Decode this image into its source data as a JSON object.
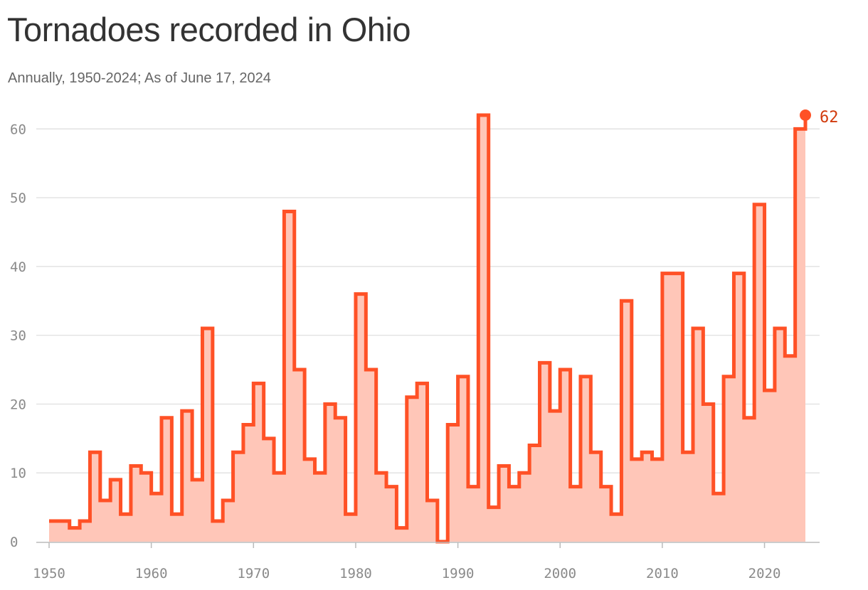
{
  "header": {
    "title": "Tornadoes recorded in Ohio",
    "subtitle": "Annually, 1950-2024; As of June 17, 2024"
  },
  "colors": {
    "line": "#ff5126",
    "area": "#ffc6b8",
    "grid": "#dddddd",
    "axis": "#bbbbbb",
    "tick_text": "#8a8a8a",
    "end_label": "#d13a0c"
  },
  "chart_data": {
    "type": "area",
    "step": true,
    "title": "Tornadoes recorded in Ohio",
    "subtitle": "Annually, 1950-2024; As of June 17, 2024",
    "xlabel": "",
    "ylabel": "",
    "xlim": [
      1950,
      2024
    ],
    "ylim": [
      0,
      62
    ],
    "x_ticks": [
      1950,
      1960,
      1970,
      1980,
      1990,
      2000,
      2010,
      2020
    ],
    "y_ticks": [
      0,
      10,
      20,
      30,
      40,
      50,
      60
    ],
    "grid": "horizontal",
    "x": [
      1950,
      1951,
      1952,
      1953,
      1954,
      1955,
      1956,
      1957,
      1958,
      1959,
      1960,
      1961,
      1962,
      1963,
      1964,
      1965,
      1966,
      1967,
      1968,
      1969,
      1970,
      1971,
      1972,
      1973,
      1974,
      1975,
      1976,
      1977,
      1978,
      1979,
      1980,
      1981,
      1982,
      1983,
      1984,
      1985,
      1986,
      1987,
      1988,
      1989,
      1990,
      1991,
      1992,
      1993,
      1994,
      1995,
      1996,
      1997,
      1998,
      1999,
      2000,
      2001,
      2002,
      2003,
      2004,
      2005,
      2006,
      2007,
      2008,
      2009,
      2010,
      2011,
      2012,
      2013,
      2014,
      2015,
      2016,
      2017,
      2018,
      2019,
      2020,
      2021,
      2022,
      2023,
      2024
    ],
    "values": [
      3,
      3,
      2,
      3,
      13,
      6,
      9,
      4,
      11,
      10,
      7,
      18,
      4,
      19,
      9,
      31,
      3,
      6,
      13,
      17,
      23,
      15,
      10,
      48,
      25,
      12,
      10,
      20,
      18,
      4,
      36,
      25,
      10,
      8,
      2,
      21,
      23,
      6,
      0,
      17,
      24,
      8,
      62,
      5,
      11,
      8,
      10,
      14,
      26,
      19,
      25,
      8,
      24,
      13,
      8,
      4,
      35,
      12,
      13,
      12,
      39,
      39,
      13,
      31,
      20,
      7,
      24,
      39,
      18,
      49,
      22,
      31,
      27,
      60,
      62
    ],
    "end_label": "62"
  }
}
